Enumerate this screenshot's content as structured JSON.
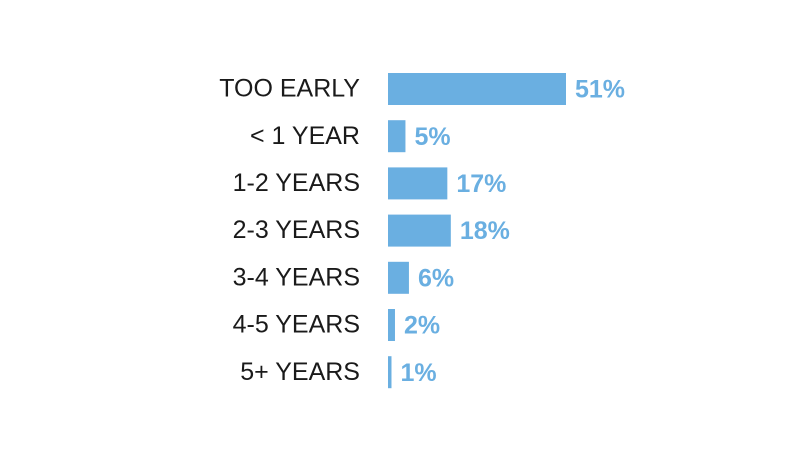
{
  "chart_data": {
    "type": "bar",
    "orientation": "horizontal",
    "color": "#6aafe1",
    "categories": [
      "TOO EARLY",
      "< 1 YEAR",
      "1-2 YEARS",
      "2-3 YEARS",
      "3-4 YEARS",
      "4-5 YEARS",
      "5+ YEARS"
    ],
    "values": [
      51,
      5,
      17,
      18,
      6,
      2,
      1
    ],
    "value_labels": [
      "51%",
      "5%",
      "17%",
      "18%",
      "6%",
      "2%",
      "1%"
    ]
  }
}
